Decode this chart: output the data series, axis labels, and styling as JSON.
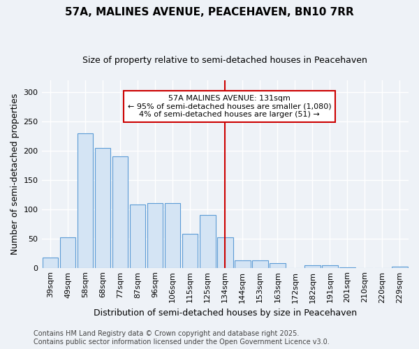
{
  "title": "57A, MALINES AVENUE, PEACEHAVEN, BN10 7RR",
  "subtitle": "Size of property relative to semi-detached houses in Peacehaven",
  "xlabel": "Distribution of semi-detached houses by size in Peacehaven",
  "ylabel": "Number of semi-detached properties",
  "categories": [
    "39sqm",
    "49sqm",
    "58sqm",
    "68sqm",
    "77sqm",
    "87sqm",
    "96sqm",
    "106sqm",
    "115sqm",
    "125sqm",
    "134sqm",
    "144sqm",
    "153sqm",
    "163sqm",
    "172sqm",
    "182sqm",
    "191sqm",
    "201sqm",
    "210sqm",
    "220sqm",
    "229sqm"
  ],
  "values": [
    18,
    52,
    230,
    205,
    190,
    108,
    110,
    110,
    58,
    90,
    52,
    13,
    13,
    8,
    0,
    4,
    4,
    1,
    0,
    0,
    2
  ],
  "bar_color": "#d4e4f4",
  "bar_edge_color": "#5b9bd5",
  "vline_x": 10.5,
  "vline_color": "#cc0000",
  "annotation_line1": "57A MALINES AVENUE: 131sqm",
  "annotation_line2": "← 95% of semi-detached houses are smaller (1,080)",
  "annotation_line3": "4% of semi-detached houses are larger (51) →",
  "annotation_box_color": "#cc0000",
  "ylim": [
    0,
    320
  ],
  "yticks": [
    0,
    50,
    100,
    150,
    200,
    250,
    300
  ],
  "background_color": "#eef2f7",
  "grid_color": "#ffffff",
  "title_fontsize": 11,
  "subtitle_fontsize": 9,
  "axis_label_fontsize": 9,
  "tick_fontsize": 8,
  "annotation_fontsize": 8,
  "footer_fontsize": 7,
  "footer_line1": "Contains HM Land Registry data © Crown copyright and database right 2025.",
  "footer_line2": "Contains public sector information licensed under the Open Government Licence v3.0."
}
